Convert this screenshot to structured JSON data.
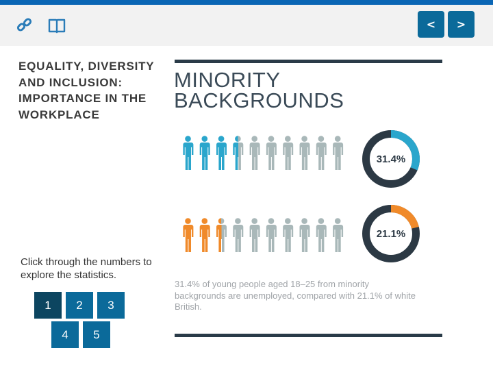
{
  "toolbar": {
    "link_icon": "link-icon",
    "book_icon": "book-icon",
    "prev_label": "<",
    "next_label": ">"
  },
  "sidebar": {
    "title": "EQUALITY, DIVERSITY AND INCLUSION: IMPORTANCE IN THE WORKPLACE",
    "instruction": "Click through the numbers to explore the statistics.",
    "pages": [
      "1",
      "2",
      "3",
      "4",
      "5"
    ],
    "active_page": "1"
  },
  "main": {
    "heading_line1": "MINORITY",
    "heading_line2": "BACKGROUNDS",
    "stats": [
      {
        "percent": 31.4,
        "label": "31.4%",
        "color": "#2aa6cc",
        "people_highlighted": 3.5,
        "people_total": 10
      },
      {
        "percent": 21.1,
        "label": "21.1%",
        "color": "#f08a2a",
        "people_highlighted": 2.5,
        "people_total": 10
      }
    ],
    "caption": "31.4% of young people aged 18–25 from minority backgrounds are unemployed, compared with 21.1% of white British."
  },
  "colors": {
    "brand_blue": "#0b6a9a",
    "active_blue": "#0c4560",
    "people_grey": "#a9b8b9",
    "donut_track": "#2c3944"
  }
}
